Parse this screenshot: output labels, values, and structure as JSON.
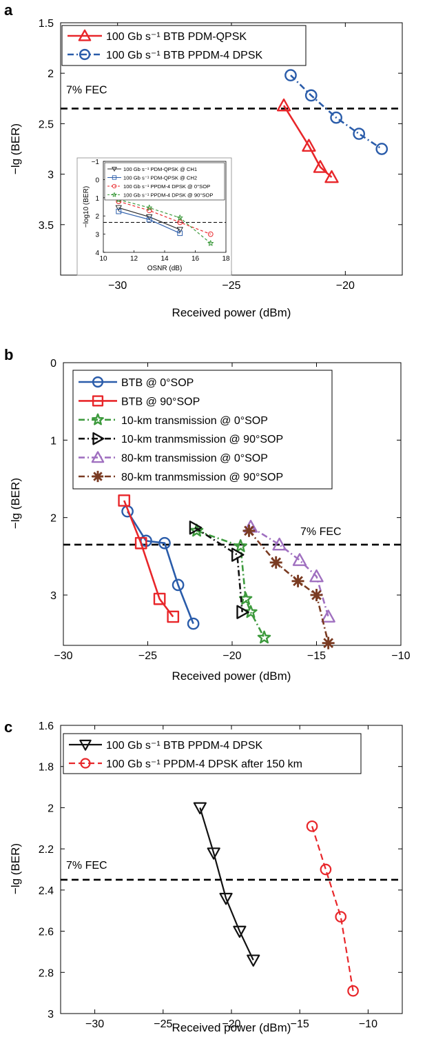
{
  "chart_data": [
    {
      "panel": "a",
      "type": "line",
      "xlabel": "Received power (dBm)",
      "ylabel": "−lg (BER)",
      "xlim": [
        -32.5,
        -17.5
      ],
      "ylim": [
        1.5,
        4.0
      ],
      "y_inverted": true,
      "xticks": [
        -30,
        -25,
        -20
      ],
      "yticks": [
        1.5,
        2,
        2.5,
        3,
        3.5
      ],
      "xtick_labels": [
        "−30",
        "−25",
        "−20"
      ],
      "ytick_labels": [
        "1.5",
        "2",
        "2.5",
        "3",
        "3.5"
      ],
      "grid": false,
      "legend_position": "top-left",
      "fec": {
        "label": "7% FEC",
        "y": 2.35
      },
      "series": [
        {
          "name": "100 Gb s⁻¹ BTB PDM-QPSK",
          "color": "#e8262a",
          "marker": "triangle-up",
          "dash": "solid",
          "x": [
            -22.7,
            -21.6,
            -21.1,
            -20.6
          ],
          "y": [
            2.32,
            2.72,
            2.93,
            3.03
          ]
        },
        {
          "name": "100 Gb s⁻¹ BTB PPDM-4 DPSK",
          "color": "#2a5caa",
          "marker": "circle",
          "dash": "dashdot",
          "x": [
            -22.4,
            -21.5,
            -20.4,
            -19.4,
            -18.4
          ],
          "y": [
            2.02,
            2.22,
            2.44,
            2.6,
            2.75
          ]
        }
      ],
      "inset": {
        "type": "line",
        "xlabel": "OSNR (dB)",
        "ylabel": "−log10 (BER)",
        "xlim": [
          10,
          18
        ],
        "ylim": [
          -1,
          4
        ],
        "y_inverted": true,
        "xticks": [
          10,
          12,
          14,
          16,
          18
        ],
        "yticks": [
          -1,
          0,
          1,
          2,
          3,
          4
        ],
        "xtick_labels": [
          "10",
          "12",
          "14",
          "16",
          "18"
        ],
        "ytick_labels": [
          "−1",
          "0",
          "1",
          "2",
          "3",
          "4"
        ],
        "threshold_y": 2.35,
        "series": [
          {
            "name": "100 Gb s⁻¹ PDM-QPSK @ CH1",
            "color": "#2a2a2a",
            "marker": "triangle-down",
            "dash": "solid",
            "x": [
              11,
              13,
              15
            ],
            "y": [
              1.55,
              2.05,
              2.75
            ]
          },
          {
            "name": "100 Gb s⁻¹ PDM-QPSK @ CH2",
            "color": "#2a5caa",
            "marker": "square",
            "dash": "solid",
            "x": [
              11,
              13,
              15
            ],
            "y": [
              1.75,
              2.2,
              2.95
            ]
          },
          {
            "name": "100 Gb s⁻¹ PPDM-4 DPSK @ 0°SOP",
            "color": "#e8262a",
            "marker": "circle",
            "dash": "dashed",
            "x": [
              11,
              13,
              15,
              17
            ],
            "y": [
              1.2,
              1.7,
              2.35,
              3.0
            ]
          },
          {
            "name": "100 Gb s⁻¹ PPDM-4 DPSK @ 90°SOP",
            "color": "#3d9a3d",
            "marker": "star",
            "dash": "dashed",
            "x": [
              11,
              13,
              15,
              17
            ],
            "y": [
              1.1,
              1.55,
              2.1,
              3.5
            ]
          }
        ]
      }
    },
    {
      "panel": "b",
      "type": "line",
      "xlabel": "Received power (dBm)",
      "ylabel": "−lg (BER)",
      "xlim": [
        -30,
        -10
      ],
      "ylim": [
        0,
        3.65
      ],
      "y_inverted": true,
      "xticks": [
        -30,
        -25,
        -20,
        -15,
        -10
      ],
      "yticks": [
        0,
        1,
        2,
        3
      ],
      "xtick_labels": [
        "−30",
        "−25",
        "−20",
        "−15",
        "−10"
      ],
      "ytick_labels": [
        "0",
        "1",
        "2",
        "3"
      ],
      "grid": false,
      "legend_position": "top-left",
      "fec": {
        "label": "7% FEC",
        "y": 2.35
      },
      "series": [
        {
          "name": "BTB @ 0°SOP",
          "color": "#2a5caa",
          "marker": "circle",
          "dash": "solid",
          "x": [
            -26.2,
            -25.1,
            -24.0,
            -23.2,
            -22.3
          ],
          "y": [
            1.92,
            2.3,
            2.33,
            2.87,
            3.37
          ]
        },
        {
          "name": "BTB @ 90°SOP",
          "color": "#e8262a",
          "marker": "square",
          "dash": "solid",
          "x": [
            -26.4,
            -25.4,
            -24.3,
            -23.5
          ],
          "y": [
            1.78,
            2.33,
            3.05,
            3.28
          ]
        },
        {
          "name": "10-km transmission @ 0°SOP",
          "color": "#3d9a3d",
          "marker": "star",
          "dash": "dashdot",
          "x": [
            -22.1,
            -19.5,
            -19.2,
            -18.9,
            -18.1
          ],
          "y": [
            2.17,
            2.37,
            3.05,
            3.22,
            3.55
          ]
        },
        {
          "name": "10-km tranmsmission @ 90°SOP",
          "color": "#111111",
          "marker": "triangle-right",
          "dash": "dashdot",
          "x": [
            -22.2,
            -19.7,
            -19.4
          ],
          "y": [
            2.13,
            2.48,
            3.22
          ]
        },
        {
          "name": "80-km transmission @ 0°SOP",
          "color": "#a070c0",
          "marker": "triangle-up",
          "dash": "dashdot",
          "x": [
            -18.9,
            -17.2,
            -16.0,
            -15.0,
            -14.3
          ],
          "y": [
            2.12,
            2.35,
            2.55,
            2.76,
            3.28
          ]
        },
        {
          "name": "80-km tranmsmission @ 90°SOP",
          "color": "#7a3b22",
          "marker": "asterisk",
          "dash": "dashdot",
          "x": [
            -19.0,
            -17.4,
            -16.1,
            -15.0,
            -14.3
          ],
          "y": [
            2.17,
            2.58,
            2.82,
            3.0,
            3.62
          ]
        }
      ]
    },
    {
      "panel": "c",
      "type": "line",
      "xlabel": "Received power (dBm)",
      "ylabel": "−lg (BER)",
      "xlim": [
        -32.5,
        -7.5
      ],
      "ylim": [
        1.6,
        3.0
      ],
      "y_inverted": true,
      "xticks": [
        -30,
        -25,
        -20,
        -15,
        -10
      ],
      "yticks": [
        1.6,
        1.8,
        2,
        2.2,
        2.4,
        2.6,
        2.8,
        3
      ],
      "xtick_labels": [
        "−30",
        "−25",
        "−20",
        "−15",
        "−10"
      ],
      "ytick_labels": [
        "1.6",
        "1.8",
        "2",
        "2.2",
        "2.4",
        "2.6",
        "2.8",
        "3"
      ],
      "grid": false,
      "legend_position": "top-left",
      "fec": {
        "label": "7% FEC",
        "y": 2.35
      },
      "series": [
        {
          "name": "100 Gb s⁻¹ BTB PPDM-4 DPSK",
          "color": "#111111",
          "marker": "triangle-down",
          "dash": "solid",
          "x": [
            -22.3,
            -21.3,
            -20.4,
            -19.4,
            -18.4
          ],
          "y": [
            2.0,
            2.22,
            2.44,
            2.6,
            2.74
          ]
        },
        {
          "name": "100 Gb s⁻¹ PPDM-4 DPSK after 150 km",
          "color": "#e8262a",
          "marker": "circle",
          "dash": "dashed",
          "x": [
            -14.1,
            -13.1,
            -12.0,
            -11.1
          ],
          "y": [
            2.09,
            2.3,
            2.53,
            2.89
          ]
        }
      ]
    }
  ]
}
